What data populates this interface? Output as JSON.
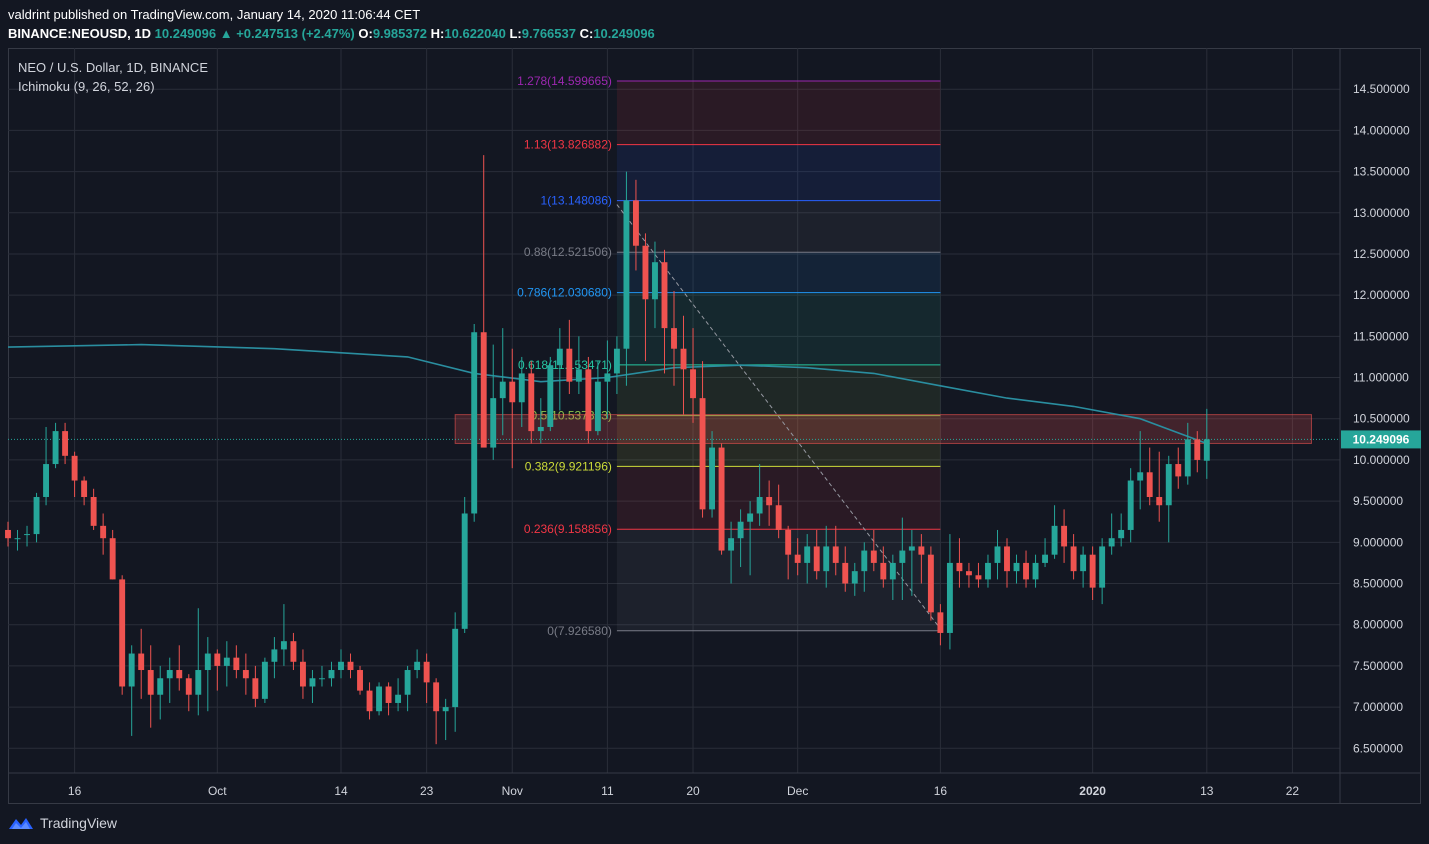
{
  "header": {
    "line1": "valdrint published on TradingView.com, January 14, 2020 11:06:44 CET",
    "symbol": "BINANCE:NEOUSD, 1D",
    "last": "10.249096",
    "change": "▲ +0.247513 (+2.47%)",
    "o_label": "O:",
    "o": "9.985372",
    "h_label": "H:",
    "h": "10.622040",
    "l_label": "L:",
    "l": "9.766537",
    "c_label": "C:",
    "c": "10.249096"
  },
  "legend": {
    "title": "NEO / U.S. Dollar, 1D, BINANCE",
    "indicator": "Ichimoku (9, 26, 52, 26)"
  },
  "brand": {
    "name": "TradingView"
  },
  "colors": {
    "background": "#131722",
    "up": "#26a69a",
    "down": "#ef5350",
    "cloud": "#2a8ea0"
  },
  "chart_data": {
    "type": "candlestick",
    "title": "NEO / U.S. Dollar, 1D, BINANCE",
    "x_start": "2019-09-09",
    "x_end": "2020-01-27",
    "ylim": [
      6.2,
      15.0
    ],
    "y_ticks": [
      "6.500000",
      "7.000000",
      "7.500000",
      "8.000000",
      "8.500000",
      "9.000000",
      "9.500000",
      "10.000000",
      "10.500000",
      "11.000000",
      "11.500000",
      "12.000000",
      "12.500000",
      "13.000000",
      "13.500000",
      "14.000000",
      "14.500000"
    ],
    "x_ticks": [
      {
        "label": "16",
        "date": "2019-09-16"
      },
      {
        "label": "Oct",
        "date": "2019-10-01"
      },
      {
        "label": "14",
        "date": "2019-10-14"
      },
      {
        "label": "23",
        "date": "2019-10-23"
      },
      {
        "label": "Nov",
        "date": "2019-11-01"
      },
      {
        "label": "11",
        "date": "2019-11-11"
      },
      {
        "label": "20",
        "date": "2019-11-20"
      },
      {
        "label": "Dec",
        "date": "2019-12-01"
      },
      {
        "label": "16",
        "date": "2019-12-16"
      },
      {
        "label": "2020",
        "date": "2020-01-01"
      },
      {
        "label": "13",
        "date": "2020-01-13"
      },
      {
        "label": "22",
        "date": "2020-01-22"
      }
    ],
    "current_price": {
      "value": 10.249096,
      "label": "10.249096"
    },
    "first_date": "2019-09-09",
    "candles": [
      [
        9.15,
        9.25,
        8.95,
        9.05
      ],
      [
        9.05,
        9.15,
        8.9,
        9.05
      ],
      [
        9.1,
        9.2,
        8.95,
        9.1
      ],
      [
        9.1,
        9.6,
        9.0,
        9.55
      ],
      [
        9.55,
        10.4,
        9.45,
        9.95
      ],
      [
        9.95,
        10.45,
        9.9,
        10.35
      ],
      [
        10.35,
        10.45,
        9.95,
        10.05
      ],
      [
        10.05,
        10.1,
        9.55,
        9.75
      ],
      [
        9.75,
        9.8,
        9.45,
        9.55
      ],
      [
        9.55,
        9.65,
        9.15,
        9.2
      ],
      [
        9.2,
        9.35,
        8.85,
        9.05
      ],
      [
        9.05,
        9.15,
        8.55,
        8.55
      ],
      [
        8.55,
        8.6,
        7.15,
        7.25
      ],
      [
        7.25,
        7.75,
        6.65,
        7.65
      ],
      [
        7.65,
        7.95,
        7.1,
        7.45
      ],
      [
        7.45,
        7.75,
        6.75,
        7.15
      ],
      [
        7.15,
        7.5,
        6.85,
        7.35
      ],
      [
        7.35,
        7.6,
        7.05,
        7.45
      ],
      [
        7.45,
        7.75,
        7.2,
        7.35
      ],
      [
        7.35,
        7.4,
        6.95,
        7.15
      ],
      [
        7.15,
        8.2,
        6.9,
        7.45
      ],
      [
        7.45,
        7.85,
        6.95,
        7.65
      ],
      [
        7.65,
        7.7,
        7.2,
        7.5
      ],
      [
        7.5,
        7.8,
        7.25,
        7.6
      ],
      [
        7.6,
        7.75,
        7.35,
        7.45
      ],
      [
        7.45,
        7.65,
        7.15,
        7.35
      ],
      [
        7.35,
        7.5,
        7.0,
        7.1
      ],
      [
        7.1,
        7.6,
        7.05,
        7.55
      ],
      [
        7.55,
        7.85,
        7.35,
        7.7
      ],
      [
        7.7,
        8.25,
        7.5,
        7.8
      ],
      [
        7.8,
        7.9,
        7.45,
        7.55
      ],
      [
        7.55,
        7.7,
        7.1,
        7.25
      ],
      [
        7.25,
        7.45,
        7.05,
        7.35
      ],
      [
        7.35,
        7.5,
        7.25,
        7.35
      ],
      [
        7.35,
        7.55,
        7.25,
        7.45
      ],
      [
        7.45,
        7.7,
        7.35,
        7.55
      ],
      [
        7.55,
        7.65,
        7.35,
        7.45
      ],
      [
        7.45,
        7.5,
        7.15,
        7.2
      ],
      [
        7.2,
        7.3,
        6.85,
        6.95
      ],
      [
        6.95,
        7.3,
        6.9,
        7.25
      ],
      [
        7.25,
        7.3,
        6.9,
        7.05
      ],
      [
        7.05,
        7.35,
        6.95,
        7.15
      ],
      [
        7.15,
        7.5,
        6.95,
        7.45
      ],
      [
        7.45,
        7.7,
        7.35,
        7.55
      ],
      [
        7.55,
        7.65,
        7.05,
        7.3
      ],
      [
        7.3,
        7.35,
        6.55,
        6.95
      ],
      [
        6.95,
        7.1,
        6.6,
        7.0
      ],
      [
        7.0,
        8.15,
        6.7,
        7.95
      ],
      [
        7.95,
        9.55,
        7.9,
        9.35
      ],
      [
        9.35,
        11.65,
        9.25,
        11.55
      ],
      [
        11.55,
        13.7,
        10.2,
        10.15
      ],
      [
        10.15,
        11.4,
        10.0,
        10.75
      ],
      [
        10.75,
        11.6,
        10.3,
        10.95
      ],
      [
        10.95,
        11.35,
        9.9,
        10.7
      ],
      [
        10.7,
        11.25,
        10.4,
        11.05
      ],
      [
        11.05,
        11.2,
        10.2,
        10.35
      ],
      [
        10.35,
        10.75,
        10.2,
        10.4
      ],
      [
        10.4,
        11.25,
        10.35,
        11.15
      ],
      [
        11.15,
        11.6,
        10.6,
        11.35
      ],
      [
        11.35,
        11.7,
        10.8,
        10.95
      ],
      [
        10.95,
        11.5,
        10.8,
        11.1
      ],
      [
        11.1,
        11.25,
        10.2,
        10.35
      ],
      [
        10.35,
        11.2,
        10.3,
        10.95
      ],
      [
        10.95,
        11.45,
        10.5,
        11.05
      ],
      [
        11.05,
        11.5,
        10.8,
        11.35
      ],
      [
        11.35,
        13.5,
        10.9,
        13.15
      ],
      [
        13.15,
        13.4,
        12.3,
        12.6
      ],
      [
        12.6,
        12.75,
        11.2,
        11.95
      ],
      [
        11.95,
        12.65,
        11.6,
        12.4
      ],
      [
        12.4,
        12.55,
        11.05,
        11.6
      ],
      [
        11.6,
        12.05,
        10.9,
        11.35
      ],
      [
        11.35,
        11.75,
        10.55,
        11.1
      ],
      [
        11.1,
        11.6,
        10.45,
        10.75
      ],
      [
        10.75,
        11.2,
        9.3,
        9.4
      ],
      [
        9.4,
        10.35,
        9.3,
        10.15
      ],
      [
        10.15,
        10.2,
        8.85,
        8.9
      ],
      [
        8.9,
        9.25,
        8.5,
        9.05
      ],
      [
        9.05,
        9.4,
        8.7,
        9.25
      ],
      [
        9.25,
        9.5,
        8.6,
        9.35
      ],
      [
        9.35,
        9.95,
        9.2,
        9.55
      ],
      [
        9.55,
        9.75,
        9.2,
        9.45
      ],
      [
        9.45,
        9.7,
        9.05,
        9.15
      ],
      [
        9.15,
        9.2,
        8.55,
        8.85
      ],
      [
        8.85,
        9.05,
        8.6,
        8.75
      ],
      [
        8.75,
        9.1,
        8.5,
        8.95
      ],
      [
        8.95,
        9.15,
        8.55,
        8.65
      ],
      [
        8.65,
        9.2,
        8.45,
        8.95
      ],
      [
        8.95,
        9.2,
        8.6,
        8.75
      ],
      [
        8.75,
        8.95,
        8.4,
        8.5
      ],
      [
        8.5,
        8.75,
        8.35,
        8.65
      ],
      [
        8.65,
        9.0,
        8.4,
        8.9
      ],
      [
        8.9,
        9.15,
        8.65,
        8.75
      ],
      [
        8.75,
        8.95,
        8.45,
        8.55
      ],
      [
        8.55,
        8.85,
        8.3,
        8.75
      ],
      [
        8.75,
        9.3,
        8.3,
        8.9
      ],
      [
        8.9,
        9.15,
        8.35,
        8.95
      ],
      [
        8.95,
        9.1,
        8.5,
        8.85
      ],
      [
        8.85,
        8.95,
        8.05,
        8.15
      ],
      [
        8.15,
        8.25,
        7.75,
        7.9
      ],
      [
        7.9,
        9.1,
        7.7,
        8.75
      ],
      [
        8.75,
        9.05,
        8.45,
        8.65
      ],
      [
        8.65,
        8.75,
        8.45,
        8.6
      ],
      [
        8.6,
        8.75,
        8.45,
        8.55
      ],
      [
        8.55,
        8.85,
        8.45,
        8.75
      ],
      [
        8.75,
        9.15,
        8.55,
        8.95
      ],
      [
        8.95,
        9.05,
        8.45,
        8.65
      ],
      [
        8.65,
        8.85,
        8.5,
        8.75
      ],
      [
        8.75,
        8.9,
        8.45,
        8.55
      ],
      [
        8.55,
        8.85,
        8.45,
        8.75
      ],
      [
        8.75,
        9.05,
        8.7,
        8.85
      ],
      [
        8.85,
        9.45,
        8.8,
        9.2
      ],
      [
        9.2,
        9.4,
        8.75,
        8.95
      ],
      [
        8.95,
        9.1,
        8.55,
        8.65
      ],
      [
        8.65,
        8.95,
        8.45,
        8.85
      ],
      [
        8.85,
        8.95,
        8.3,
        8.45
      ],
      [
        8.45,
        9.05,
        8.25,
        8.95
      ],
      [
        8.95,
        9.35,
        8.85,
        9.05
      ],
      [
        9.05,
        9.35,
        8.95,
        9.15
      ],
      [
        9.15,
        9.9,
        9.0,
        9.75
      ],
      [
        9.75,
        10.35,
        9.4,
        9.85
      ],
      [
        9.85,
        10.15,
        9.45,
        9.55
      ],
      [
        9.55,
        10.1,
        9.25,
        9.45
      ],
      [
        9.45,
        10.05,
        9.0,
        9.95
      ],
      [
        9.95,
        10.15,
        9.65,
        9.8
      ],
      [
        9.8,
        10.45,
        9.7,
        10.25
      ],
      [
        10.25,
        10.35,
        9.85,
        10.0
      ],
      [
        9.99,
        10.62,
        9.77,
        10.25
      ]
    ],
    "ichimoku_cloud_line": [
      [
        "2019-09-09",
        11.37
      ],
      [
        "2019-09-23",
        11.4
      ],
      [
        "2019-10-07",
        11.35
      ],
      [
        "2019-10-21",
        11.25
      ],
      [
        "2019-10-28",
        11.05
      ],
      [
        "2019-11-04",
        10.95
      ],
      [
        "2019-11-11",
        11.0
      ],
      [
        "2019-11-18",
        11.12
      ],
      [
        "2019-11-25",
        11.15
      ],
      [
        "2019-12-02",
        11.12
      ],
      [
        "2019-12-09",
        11.05
      ],
      [
        "2019-12-16",
        10.9
      ],
      [
        "2019-12-23",
        10.75
      ],
      [
        "2019-12-30",
        10.65
      ],
      [
        "2020-01-06",
        10.5
      ],
      [
        "2020-01-13",
        10.2
      ]
    ],
    "fib_retracement": {
      "start_date": "2019-11-12",
      "end_date": "2019-12-16",
      "levels": [
        {
          "label": "1.278(14.599665)",
          "value": 14.599665,
          "color": "#9c27b0"
        },
        {
          "label": "1.13(13.826882)",
          "value": 13.826882,
          "color": "#f23645"
        },
        {
          "label": "1(13.148086)",
          "value": 13.148086,
          "color": "#2962ff"
        },
        {
          "label": "0.88(12.521506)",
          "value": 12.521506,
          "color": "#787b86"
        },
        {
          "label": "0.786(12.030680)",
          "value": 12.03068,
          "color": "#2196f3"
        },
        {
          "label": "0.618(11.153471)",
          "value": 11.153471,
          "color": "#26c6a0"
        },
        {
          "label": "0.5(10.537333)",
          "value": 10.537333,
          "color": "#8bc34a"
        },
        {
          "label": "0.382(9.921196)",
          "value": 9.921196,
          "color": "#cddc39"
        },
        {
          "label": "0.236(9.158856)",
          "value": 9.158856,
          "color": "#f23645"
        },
        {
          "label": "0(7.926580)",
          "value": 7.92658,
          "color": "#787b86"
        }
      ]
    },
    "resistance_zone": {
      "from_date": "2019-10-26",
      "to_date": "2020-01-24",
      "low": 10.2,
      "high": 10.55
    },
    "trend_line": {
      "from": [
        "2019-11-12",
        13.1
      ],
      "to": [
        "2019-12-16",
        7.95
      ]
    }
  }
}
